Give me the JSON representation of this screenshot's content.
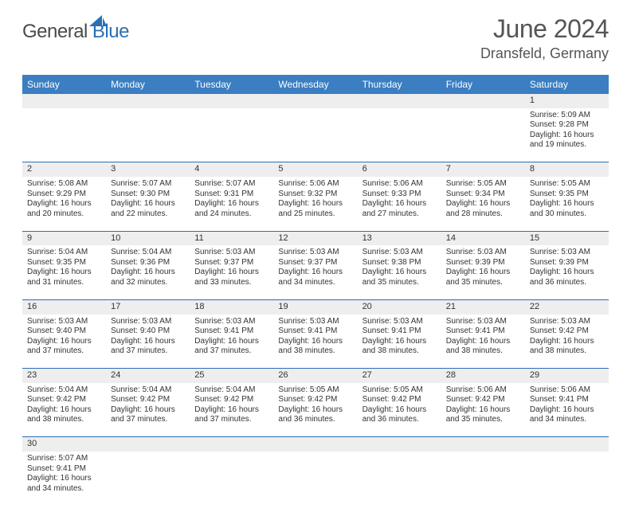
{
  "logo": {
    "text1": "General",
    "text2": "Blue"
  },
  "title": "June 2024",
  "location": "Dransfeld, Germany",
  "colors": {
    "header_bg": "#3b7ec2",
    "header_fg": "#ffffff",
    "daynum_bg": "#eeeeee",
    "rule": "#2a6fb5",
    "text": "#333333",
    "title": "#555555"
  },
  "weekdays": [
    "Sunday",
    "Monday",
    "Tuesday",
    "Wednesday",
    "Thursday",
    "Friday",
    "Saturday"
  ],
  "weeks": [
    [
      null,
      null,
      null,
      null,
      null,
      null,
      {
        "n": "1",
        "sr": "5:09 AM",
        "ss": "9:28 PM",
        "dl": "16 hours and 19 minutes."
      }
    ],
    [
      {
        "n": "2",
        "sr": "5:08 AM",
        "ss": "9:29 PM",
        "dl": "16 hours and 20 minutes."
      },
      {
        "n": "3",
        "sr": "5:07 AM",
        "ss": "9:30 PM",
        "dl": "16 hours and 22 minutes."
      },
      {
        "n": "4",
        "sr": "5:07 AM",
        "ss": "9:31 PM",
        "dl": "16 hours and 24 minutes."
      },
      {
        "n": "5",
        "sr": "5:06 AM",
        "ss": "9:32 PM",
        "dl": "16 hours and 25 minutes."
      },
      {
        "n": "6",
        "sr": "5:06 AM",
        "ss": "9:33 PM",
        "dl": "16 hours and 27 minutes."
      },
      {
        "n": "7",
        "sr": "5:05 AM",
        "ss": "9:34 PM",
        "dl": "16 hours and 28 minutes."
      },
      {
        "n": "8",
        "sr": "5:05 AM",
        "ss": "9:35 PM",
        "dl": "16 hours and 30 minutes."
      }
    ],
    [
      {
        "n": "9",
        "sr": "5:04 AM",
        "ss": "9:35 PM",
        "dl": "16 hours and 31 minutes."
      },
      {
        "n": "10",
        "sr": "5:04 AM",
        "ss": "9:36 PM",
        "dl": "16 hours and 32 minutes."
      },
      {
        "n": "11",
        "sr": "5:03 AM",
        "ss": "9:37 PM",
        "dl": "16 hours and 33 minutes."
      },
      {
        "n": "12",
        "sr": "5:03 AM",
        "ss": "9:37 PM",
        "dl": "16 hours and 34 minutes."
      },
      {
        "n": "13",
        "sr": "5:03 AM",
        "ss": "9:38 PM",
        "dl": "16 hours and 35 minutes."
      },
      {
        "n": "14",
        "sr": "5:03 AM",
        "ss": "9:39 PM",
        "dl": "16 hours and 35 minutes."
      },
      {
        "n": "15",
        "sr": "5:03 AM",
        "ss": "9:39 PM",
        "dl": "16 hours and 36 minutes."
      }
    ],
    [
      {
        "n": "16",
        "sr": "5:03 AM",
        "ss": "9:40 PM",
        "dl": "16 hours and 37 minutes."
      },
      {
        "n": "17",
        "sr": "5:03 AM",
        "ss": "9:40 PM",
        "dl": "16 hours and 37 minutes."
      },
      {
        "n": "18",
        "sr": "5:03 AM",
        "ss": "9:41 PM",
        "dl": "16 hours and 37 minutes."
      },
      {
        "n": "19",
        "sr": "5:03 AM",
        "ss": "9:41 PM",
        "dl": "16 hours and 38 minutes."
      },
      {
        "n": "20",
        "sr": "5:03 AM",
        "ss": "9:41 PM",
        "dl": "16 hours and 38 minutes."
      },
      {
        "n": "21",
        "sr": "5:03 AM",
        "ss": "9:41 PM",
        "dl": "16 hours and 38 minutes."
      },
      {
        "n": "22",
        "sr": "5:03 AM",
        "ss": "9:42 PM",
        "dl": "16 hours and 38 minutes."
      }
    ],
    [
      {
        "n": "23",
        "sr": "5:04 AM",
        "ss": "9:42 PM",
        "dl": "16 hours and 38 minutes."
      },
      {
        "n": "24",
        "sr": "5:04 AM",
        "ss": "9:42 PM",
        "dl": "16 hours and 37 minutes."
      },
      {
        "n": "25",
        "sr": "5:04 AM",
        "ss": "9:42 PM",
        "dl": "16 hours and 37 minutes."
      },
      {
        "n": "26",
        "sr": "5:05 AM",
        "ss": "9:42 PM",
        "dl": "16 hours and 36 minutes."
      },
      {
        "n": "27",
        "sr": "5:05 AM",
        "ss": "9:42 PM",
        "dl": "16 hours and 36 minutes."
      },
      {
        "n": "28",
        "sr": "5:06 AM",
        "ss": "9:42 PM",
        "dl": "16 hours and 35 minutes."
      },
      {
        "n": "29",
        "sr": "5:06 AM",
        "ss": "9:41 PM",
        "dl": "16 hours and 34 minutes."
      }
    ],
    [
      {
        "n": "30",
        "sr": "5:07 AM",
        "ss": "9:41 PM",
        "dl": "16 hours and 34 minutes."
      },
      null,
      null,
      null,
      null,
      null,
      null
    ]
  ],
  "labels": {
    "sunrise": "Sunrise:",
    "sunset": "Sunset:",
    "daylight": "Daylight:"
  }
}
